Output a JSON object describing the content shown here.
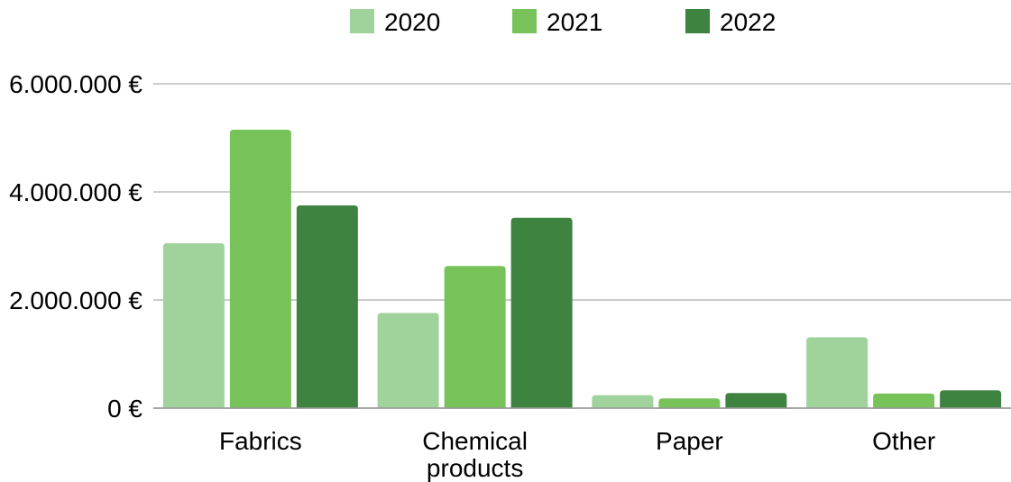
{
  "chart_data": {
    "type": "bar",
    "categories": [
      "Fabrics",
      "Chemical products",
      "Paper",
      "Other"
    ],
    "category_label_lines": [
      [
        "Fabrics"
      ],
      [
        "Chemical",
        "products"
      ],
      [
        "Paper"
      ],
      [
        "Other"
      ]
    ],
    "series": [
      {
        "name": "2020",
        "color": "#a0d29b",
        "values": [
          3050000,
          1760000,
          240000,
          1310000
        ]
      },
      {
        "name": "2021",
        "color": "#78c25a",
        "values": [
          5150000,
          2630000,
          180000,
          270000
        ]
      },
      {
        "name": "2022",
        "color": "#3e8440",
        "values": [
          3750000,
          3520000,
          280000,
          330000
        ]
      }
    ],
    "yticks": [
      {
        "value": 0,
        "label": "0 €"
      },
      {
        "value": 2000000,
        "label": "2.000.000 €"
      },
      {
        "value": 4000000,
        "label": "4.000.000 €"
      },
      {
        "value": 6000000,
        "label": "6.000.000 €"
      }
    ],
    "ylim": [
      0,
      6000000
    ],
    "title": "",
    "xlabel": "",
    "ylabel": "",
    "grid": true,
    "legend_position": "top-center",
    "gridline_color": "#9a9a9a"
  }
}
